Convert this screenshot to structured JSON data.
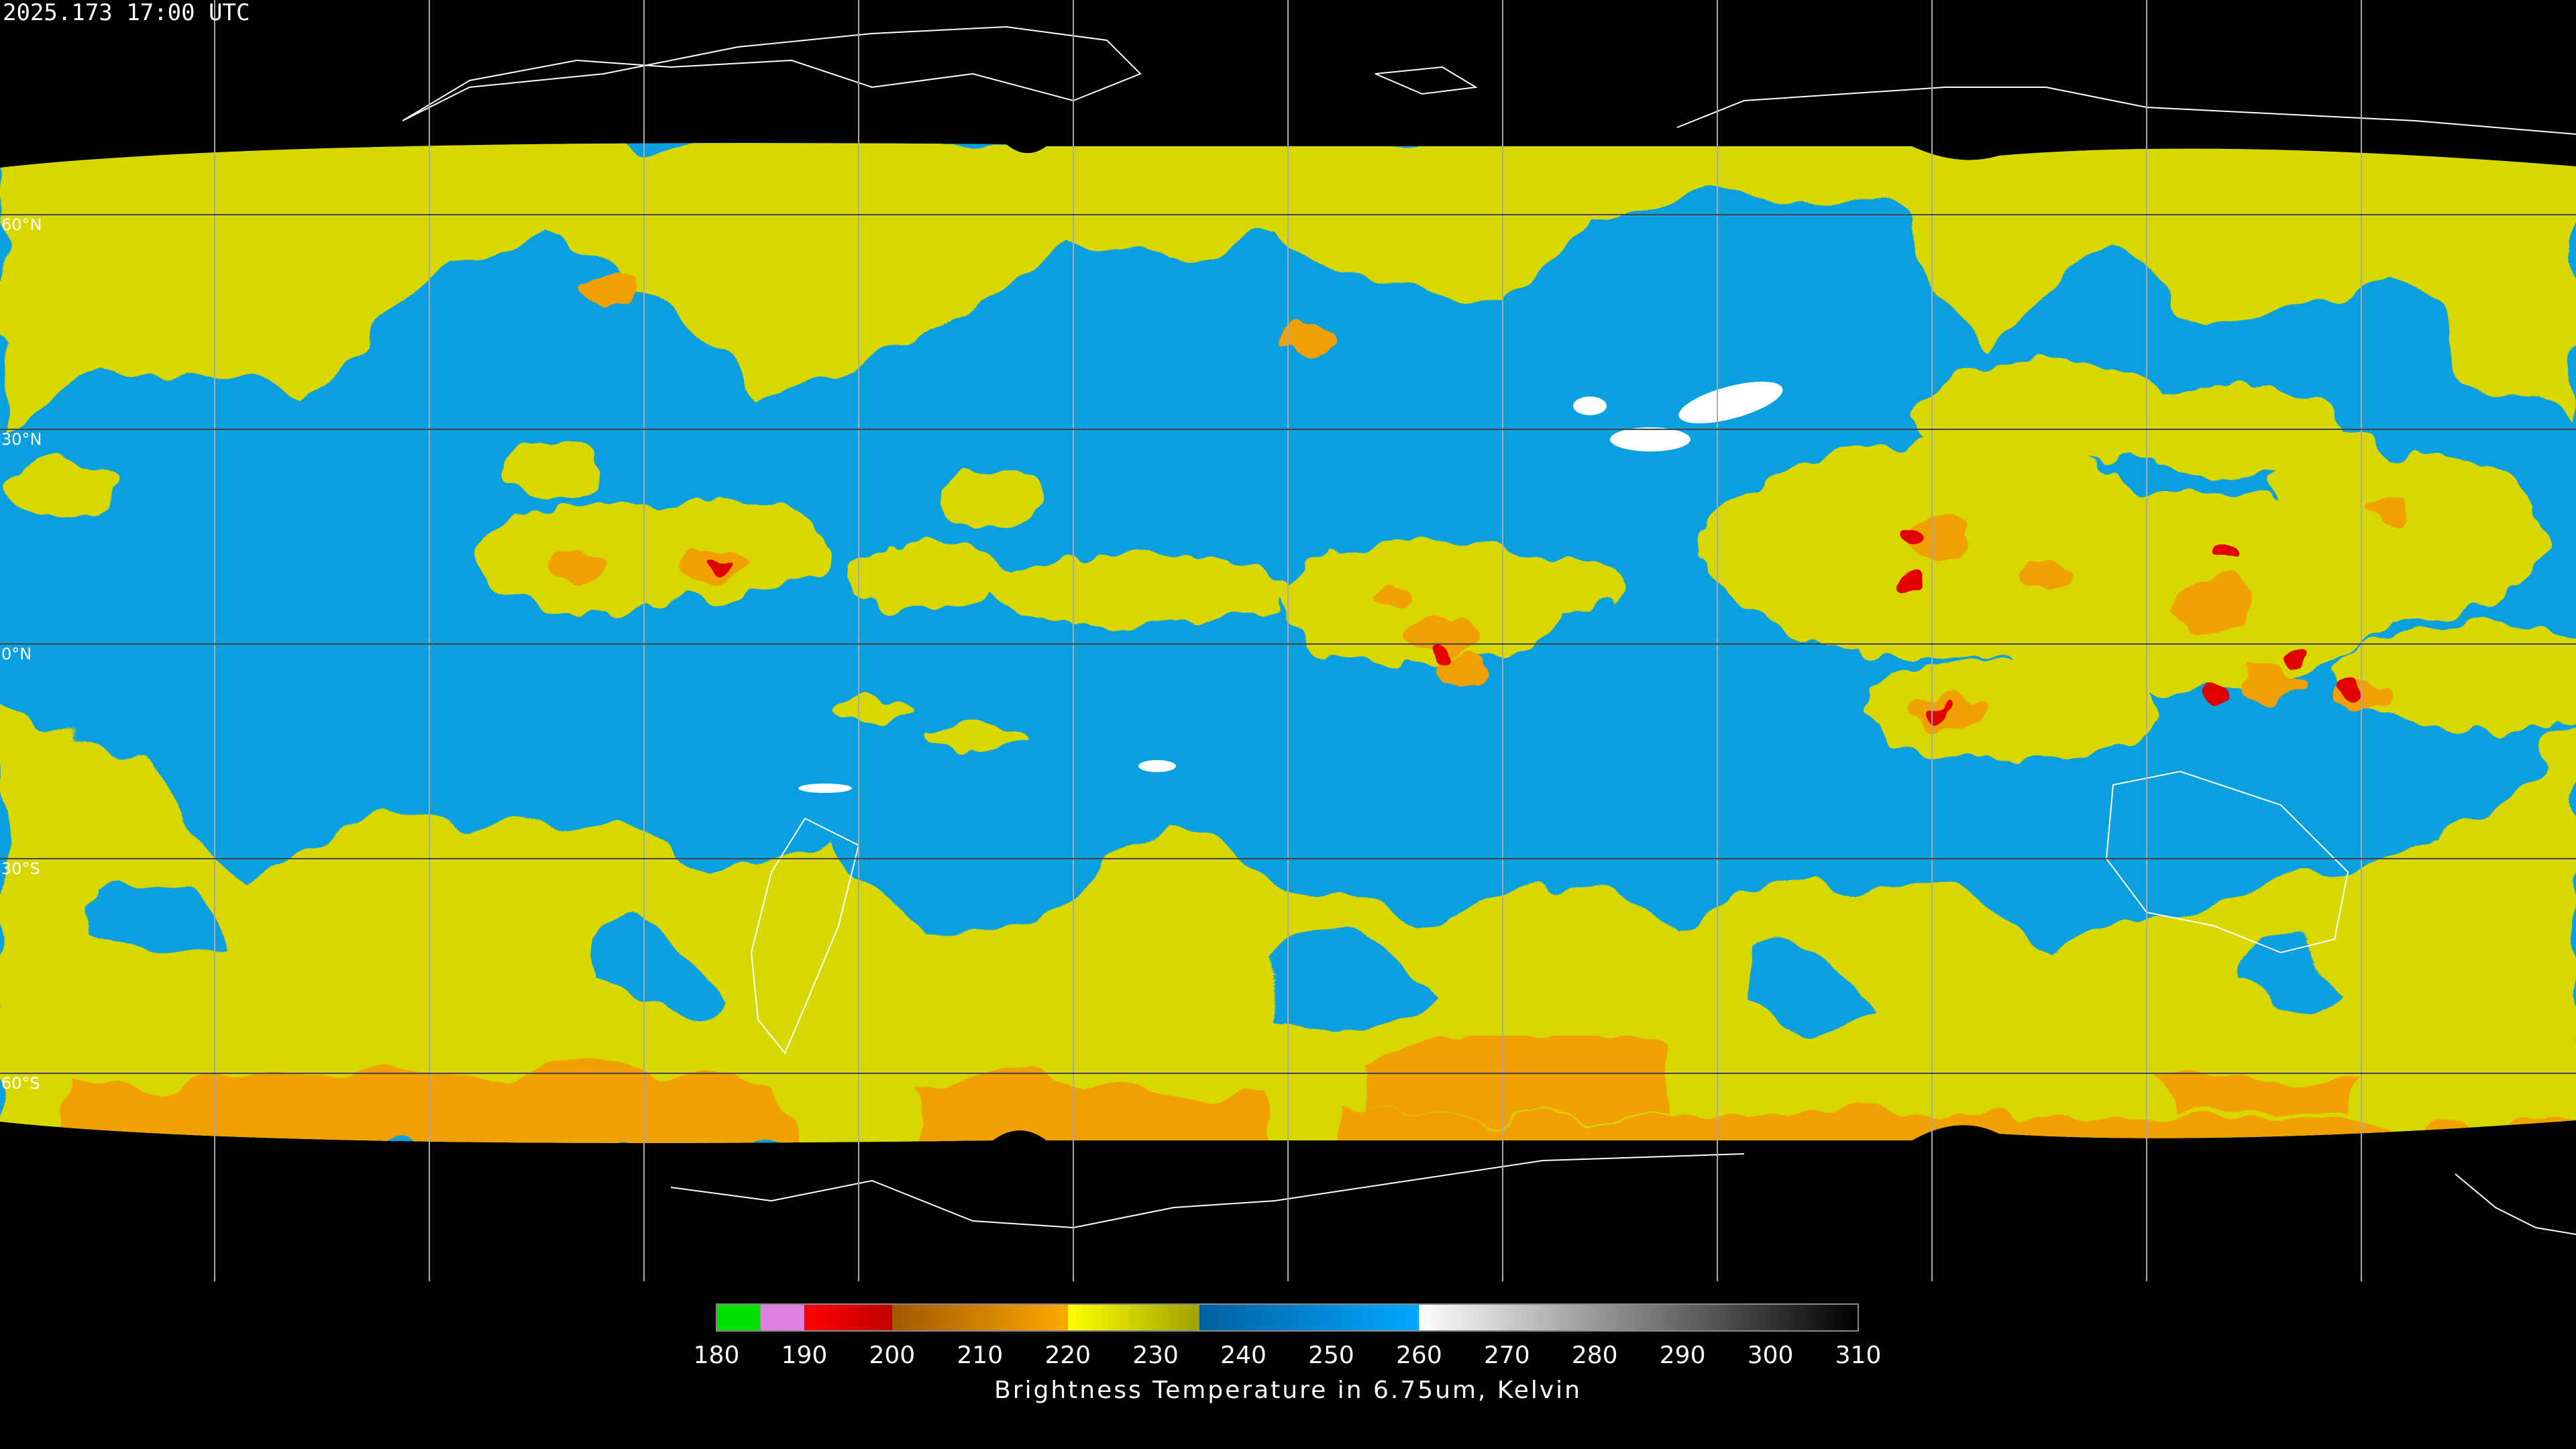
{
  "header": {
    "timestamp": "2025.173 17:00 UTC"
  },
  "map": {
    "latitudes": [
      {
        "value": 60,
        "label": "60°N"
      },
      {
        "value": 30,
        "label": "30°N"
      },
      {
        "value": 0,
        "label": "0°N"
      },
      {
        "value": -30,
        "label": "30°S"
      },
      {
        "value": -60,
        "label": "60°S"
      }
    ]
  },
  "colorbar": {
    "title": "Brightness Temperature in 6.75um, Kelvin",
    "range": [
      180,
      310
    ],
    "ticks": [
      180,
      190,
      200,
      210,
      220,
      230,
      240,
      250,
      260,
      270,
      280,
      290,
      300,
      310
    ],
    "stops": [
      {
        "value": 180,
        "color": "#00e000"
      },
      {
        "value": 185,
        "color": "#00e000"
      },
      {
        "value": 185,
        "color": "#e080e0"
      },
      {
        "value": 190,
        "color": "#e080e0"
      },
      {
        "value": 190,
        "color": "#ff0000"
      },
      {
        "value": 200,
        "color": "#c00000"
      },
      {
        "value": 200,
        "color": "#a05800"
      },
      {
        "value": 220,
        "color": "#ffa800"
      },
      {
        "value": 220,
        "color": "#ffff00"
      },
      {
        "value": 235,
        "color": "#a0a000"
      },
      {
        "value": 235,
        "color": "#0060a0"
      },
      {
        "value": 260,
        "color": "#00a8ff"
      },
      {
        "value": 260,
        "color": "#ffffff"
      },
      {
        "value": 310,
        "color": "#000000"
      }
    ]
  }
}
